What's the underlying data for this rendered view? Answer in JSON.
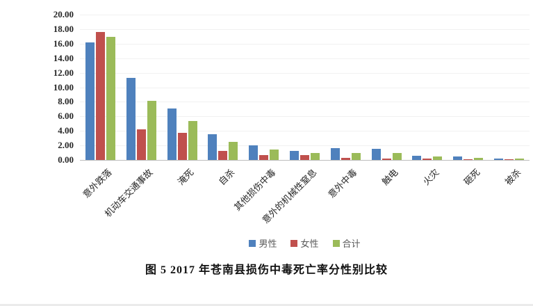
{
  "chart_data": {
    "type": "bar",
    "title": "图 5  2017 年苍南县损伤中毒死亡率分性别比较",
    "categories": [
      "意外跌落",
      "机动车交通事故",
      "淹死",
      "自杀",
      "其他损伤中毒",
      "意外的机械性窒息",
      "意外中毒",
      "触电",
      "火灾",
      "砸死",
      "被杀"
    ],
    "series": [
      {
        "name": "男性",
        "color": "#4F81BD",
        "values": [
          16.2,
          11.3,
          7.1,
          3.5,
          2.0,
          1.2,
          1.6,
          1.5,
          0.6,
          0.5,
          0.2
        ]
      },
      {
        "name": "女性",
        "color": "#C0504D",
        "values": [
          17.6,
          4.2,
          3.7,
          1.2,
          0.7,
          0.7,
          0.3,
          0.2,
          0.15,
          0.1,
          0.1
        ]
      },
      {
        "name": "合计",
        "color": "#9BBB59",
        "values": [
          16.9,
          8.1,
          5.4,
          2.5,
          1.4,
          1.0,
          1.0,
          1.0,
          0.5,
          0.25,
          0.15
        ]
      }
    ],
    "y_axis": {
      "min": 0,
      "max": 20,
      "step": 2,
      "tick_labels": [
        "20.00",
        "18.00",
        "16.00",
        "14.00",
        "12.00",
        "10.00",
        "8.00",
        "6.00",
        "4.00",
        "2.00",
        "0.00"
      ]
    },
    "legend": {
      "position": "bottom",
      "entries": [
        "男性",
        "女性",
        "合计"
      ]
    },
    "grid": true,
    "xlabel": "",
    "ylabel": ""
  },
  "colors": {
    "male": "#4F81BD",
    "female": "#C0504D",
    "total": "#9BBB59",
    "axis_line": "#bdbdbd",
    "gridline": "#f1f1f1"
  }
}
